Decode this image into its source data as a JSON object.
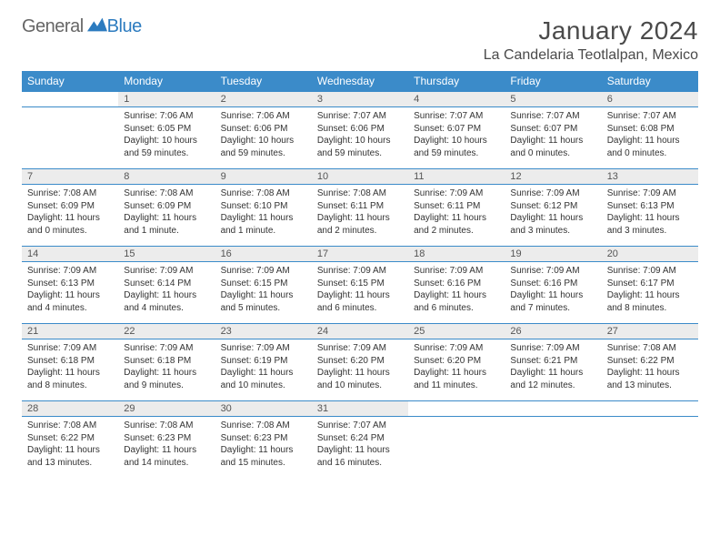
{
  "logo": {
    "text1": "General",
    "text2": "Blue"
  },
  "title": "January 2024",
  "location": "La Candelaria Teotlalpan, Mexico",
  "header_bg": "#3b8bc9",
  "daynum_bg": "#ececec",
  "weekdays": [
    "Sunday",
    "Monday",
    "Tuesday",
    "Wednesday",
    "Thursday",
    "Friday",
    "Saturday"
  ],
  "weeks": [
    {
      "nums": [
        "",
        "1",
        "2",
        "3",
        "4",
        "5",
        "6"
      ],
      "cells": [
        null,
        {
          "sunrise": "Sunrise: 7:06 AM",
          "sunset": "Sunset: 6:05 PM",
          "daylight": "Daylight: 10 hours and 59 minutes."
        },
        {
          "sunrise": "Sunrise: 7:06 AM",
          "sunset": "Sunset: 6:06 PM",
          "daylight": "Daylight: 10 hours and 59 minutes."
        },
        {
          "sunrise": "Sunrise: 7:07 AM",
          "sunset": "Sunset: 6:06 PM",
          "daylight": "Daylight: 10 hours and 59 minutes."
        },
        {
          "sunrise": "Sunrise: 7:07 AM",
          "sunset": "Sunset: 6:07 PM",
          "daylight": "Daylight: 10 hours and 59 minutes."
        },
        {
          "sunrise": "Sunrise: 7:07 AM",
          "sunset": "Sunset: 6:07 PM",
          "daylight": "Daylight: 11 hours and 0 minutes."
        },
        {
          "sunrise": "Sunrise: 7:07 AM",
          "sunset": "Sunset: 6:08 PM",
          "daylight": "Daylight: 11 hours and 0 minutes."
        }
      ]
    },
    {
      "nums": [
        "7",
        "8",
        "9",
        "10",
        "11",
        "12",
        "13"
      ],
      "cells": [
        {
          "sunrise": "Sunrise: 7:08 AM",
          "sunset": "Sunset: 6:09 PM",
          "daylight": "Daylight: 11 hours and 0 minutes."
        },
        {
          "sunrise": "Sunrise: 7:08 AM",
          "sunset": "Sunset: 6:09 PM",
          "daylight": "Daylight: 11 hours and 1 minute."
        },
        {
          "sunrise": "Sunrise: 7:08 AM",
          "sunset": "Sunset: 6:10 PM",
          "daylight": "Daylight: 11 hours and 1 minute."
        },
        {
          "sunrise": "Sunrise: 7:08 AM",
          "sunset": "Sunset: 6:11 PM",
          "daylight": "Daylight: 11 hours and 2 minutes."
        },
        {
          "sunrise": "Sunrise: 7:09 AM",
          "sunset": "Sunset: 6:11 PM",
          "daylight": "Daylight: 11 hours and 2 minutes."
        },
        {
          "sunrise": "Sunrise: 7:09 AM",
          "sunset": "Sunset: 6:12 PM",
          "daylight": "Daylight: 11 hours and 3 minutes."
        },
        {
          "sunrise": "Sunrise: 7:09 AM",
          "sunset": "Sunset: 6:13 PM",
          "daylight": "Daylight: 11 hours and 3 minutes."
        }
      ]
    },
    {
      "nums": [
        "14",
        "15",
        "16",
        "17",
        "18",
        "19",
        "20"
      ],
      "cells": [
        {
          "sunrise": "Sunrise: 7:09 AM",
          "sunset": "Sunset: 6:13 PM",
          "daylight": "Daylight: 11 hours and 4 minutes."
        },
        {
          "sunrise": "Sunrise: 7:09 AM",
          "sunset": "Sunset: 6:14 PM",
          "daylight": "Daylight: 11 hours and 4 minutes."
        },
        {
          "sunrise": "Sunrise: 7:09 AM",
          "sunset": "Sunset: 6:15 PM",
          "daylight": "Daylight: 11 hours and 5 minutes."
        },
        {
          "sunrise": "Sunrise: 7:09 AM",
          "sunset": "Sunset: 6:15 PM",
          "daylight": "Daylight: 11 hours and 6 minutes."
        },
        {
          "sunrise": "Sunrise: 7:09 AM",
          "sunset": "Sunset: 6:16 PM",
          "daylight": "Daylight: 11 hours and 6 minutes."
        },
        {
          "sunrise": "Sunrise: 7:09 AM",
          "sunset": "Sunset: 6:16 PM",
          "daylight": "Daylight: 11 hours and 7 minutes."
        },
        {
          "sunrise": "Sunrise: 7:09 AM",
          "sunset": "Sunset: 6:17 PM",
          "daylight": "Daylight: 11 hours and 8 minutes."
        }
      ]
    },
    {
      "nums": [
        "21",
        "22",
        "23",
        "24",
        "25",
        "26",
        "27"
      ],
      "cells": [
        {
          "sunrise": "Sunrise: 7:09 AM",
          "sunset": "Sunset: 6:18 PM",
          "daylight": "Daylight: 11 hours and 8 minutes."
        },
        {
          "sunrise": "Sunrise: 7:09 AM",
          "sunset": "Sunset: 6:18 PM",
          "daylight": "Daylight: 11 hours and 9 minutes."
        },
        {
          "sunrise": "Sunrise: 7:09 AM",
          "sunset": "Sunset: 6:19 PM",
          "daylight": "Daylight: 11 hours and 10 minutes."
        },
        {
          "sunrise": "Sunrise: 7:09 AM",
          "sunset": "Sunset: 6:20 PM",
          "daylight": "Daylight: 11 hours and 10 minutes."
        },
        {
          "sunrise": "Sunrise: 7:09 AM",
          "sunset": "Sunset: 6:20 PM",
          "daylight": "Daylight: 11 hours and 11 minutes."
        },
        {
          "sunrise": "Sunrise: 7:09 AM",
          "sunset": "Sunset: 6:21 PM",
          "daylight": "Daylight: 11 hours and 12 minutes."
        },
        {
          "sunrise": "Sunrise: 7:08 AM",
          "sunset": "Sunset: 6:22 PM",
          "daylight": "Daylight: 11 hours and 13 minutes."
        }
      ]
    },
    {
      "nums": [
        "28",
        "29",
        "30",
        "31",
        "",
        "",
        ""
      ],
      "cells": [
        {
          "sunrise": "Sunrise: 7:08 AM",
          "sunset": "Sunset: 6:22 PM",
          "daylight": "Daylight: 11 hours and 13 minutes."
        },
        {
          "sunrise": "Sunrise: 7:08 AM",
          "sunset": "Sunset: 6:23 PM",
          "daylight": "Daylight: 11 hours and 14 minutes."
        },
        {
          "sunrise": "Sunrise: 7:08 AM",
          "sunset": "Sunset: 6:23 PM",
          "daylight": "Daylight: 11 hours and 15 minutes."
        },
        {
          "sunrise": "Sunrise: 7:07 AM",
          "sunset": "Sunset: 6:24 PM",
          "daylight": "Daylight: 11 hours and 16 minutes."
        },
        null,
        null,
        null
      ]
    }
  ]
}
